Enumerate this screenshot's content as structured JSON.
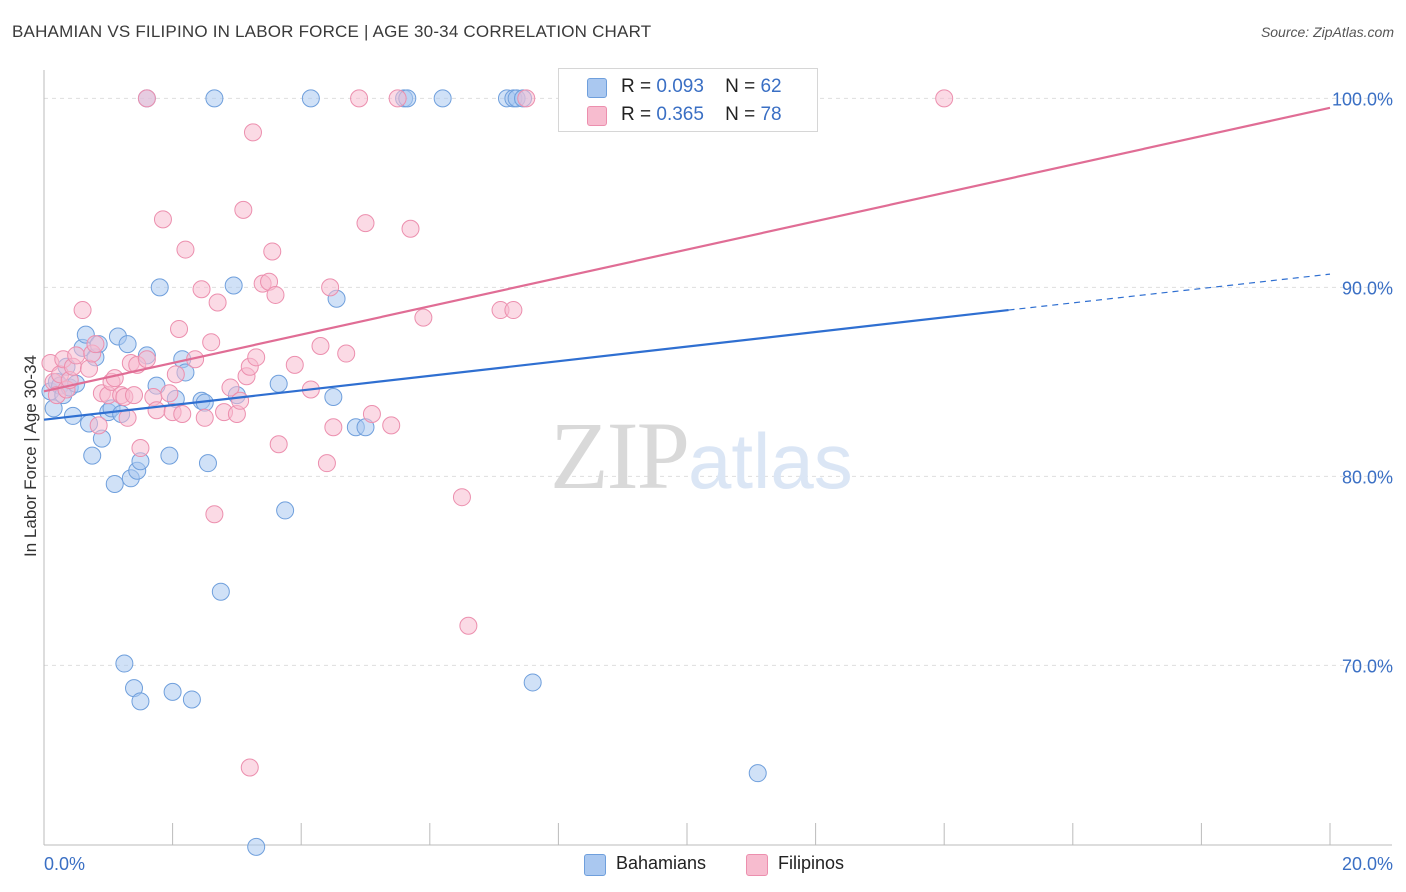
{
  "header": {
    "title": "BAHAMIAN VS FILIPINO IN LABOR FORCE | AGE 30-34 CORRELATION CHART",
    "source": "Source: ZipAtlas.com"
  },
  "legend": {
    "r_label": "R =",
    "n_label": "N =",
    "rows": [
      {
        "r": "0.093",
        "n": "62",
        "color": "#aac8f0"
      },
      {
        "r": "0.365",
        "n": "78",
        "color": "#f7bccf"
      }
    ]
  },
  "bottom_legend": [
    {
      "label": "Bahamians",
      "color": "#aac8f0"
    },
    {
      "label": "Filipinos",
      "color": "#f7bccf"
    }
  ],
  "watermark": {
    "part1": "ZIP",
    "part2": "atlas"
  },
  "chart_data": {
    "type": "scatter",
    "title": "BAHAMIAN VS FILIPINO IN LABOR FORCE | AGE 30-34 CORRELATION CHART",
    "xlabel": "",
    "ylabel": "In Labor Force | Age 30-34",
    "xlim": [
      0,
      20
    ],
    "ylim": [
      60.5,
      101.5
    ],
    "x_tick_labels": [
      "0.0%",
      "20.0%"
    ],
    "y_ticks": [
      70,
      80,
      90,
      100
    ],
    "y_tick_labels": [
      "70.0%",
      "80.0%",
      "90.0%",
      "100.0%"
    ],
    "grid": "horizontal dashed",
    "legend_position": "top-center",
    "series": [
      {
        "name": "Bahamians",
        "color": "#aac8f0",
        "stroke": "#6f9fdc",
        "line_color": "#2f6fd1",
        "trend": {
          "x0": 0.0,
          "y0": 83.0,
          "x1": 15.0,
          "y1": 88.8,
          "dash_to_x": 20.0,
          "dash_to_y": 90.7
        },
        "points": [
          [
            0.1,
            84.5
          ],
          [
            0.15,
            83.6
          ],
          [
            0.2,
            85.0
          ],
          [
            0.25,
            84.8
          ],
          [
            0.3,
            84.3
          ],
          [
            0.35,
            85.8
          ],
          [
            0.4,
            84.7
          ],
          [
            0.45,
            83.2
          ],
          [
            0.5,
            84.9
          ],
          [
            0.6,
            86.8
          ],
          [
            0.65,
            87.5
          ],
          [
            0.7,
            82.8
          ],
          [
            0.75,
            81.1
          ],
          [
            0.8,
            86.3
          ],
          [
            0.85,
            87.0
          ],
          [
            0.9,
            82.0
          ],
          [
            1.0,
            83.4
          ],
          [
            1.05,
            83.6
          ],
          [
            1.1,
            79.6
          ],
          [
            1.15,
            87.4
          ],
          [
            1.2,
            83.3
          ],
          [
            1.3,
            87.0
          ],
          [
            1.35,
            79.9
          ],
          [
            1.45,
            80.3
          ],
          [
            1.5,
            80.8
          ],
          [
            1.6,
            86.4
          ],
          [
            1.75,
            84.8
          ],
          [
            1.8,
            90.0
          ],
          [
            1.95,
            81.1
          ],
          [
            2.05,
            84.1
          ],
          [
            2.15,
            86.2
          ],
          [
            2.2,
            85.5
          ],
          [
            2.45,
            84.0
          ],
          [
            2.5,
            83.9
          ],
          [
            2.55,
            80.7
          ],
          [
            2.75,
            73.9
          ],
          [
            2.95,
            90.1
          ],
          [
            3.0,
            84.3
          ],
          [
            3.3,
            60.4
          ],
          [
            3.65,
            84.9
          ],
          [
            3.75,
            78.2
          ],
          [
            4.5,
            84.2
          ],
          [
            4.55,
            89.4
          ],
          [
            4.85,
            82.6
          ],
          [
            5.0,
            82.6
          ],
          [
            5.6,
            100.0
          ],
          [
            5.65,
            100.0
          ],
          [
            6.2,
            100.0
          ],
          [
            7.2,
            100.0
          ],
          [
            7.3,
            100.0
          ],
          [
            7.35,
            100.0
          ],
          [
            7.45,
            100.0
          ],
          [
            7.6,
            69.1
          ],
          [
            1.25,
            70.1
          ],
          [
            1.4,
            68.8
          ],
          [
            1.5,
            68.1
          ],
          [
            2.0,
            68.6
          ],
          [
            2.3,
            68.2
          ],
          [
            11.1,
            64.3
          ],
          [
            1.6,
            100.0
          ],
          [
            2.65,
            100.0
          ],
          [
            4.15,
            100.0
          ]
        ]
      },
      {
        "name": "Filipinos",
        "color": "#f7bccf",
        "stroke": "#ec8fae",
        "line_color": "#e06d95",
        "trend": {
          "x0": 0.0,
          "y0": 84.5,
          "x1": 20.0,
          "y1": 99.5
        },
        "points": [
          [
            0.1,
            86.0
          ],
          [
            0.15,
            85.0
          ],
          [
            0.2,
            84.3
          ],
          [
            0.25,
            85.4
          ],
          [
            0.3,
            86.2
          ],
          [
            0.35,
            84.6
          ],
          [
            0.4,
            85.1
          ],
          [
            0.45,
            85.8
          ],
          [
            0.5,
            86.4
          ],
          [
            0.6,
            88.8
          ],
          [
            0.7,
            85.7
          ],
          [
            0.75,
            86.5
          ],
          [
            0.8,
            87.0
          ],
          [
            0.85,
            82.7
          ],
          [
            0.9,
            84.4
          ],
          [
            1.0,
            84.3
          ],
          [
            1.05,
            85.0
          ],
          [
            1.1,
            85.2
          ],
          [
            1.2,
            84.3
          ],
          [
            1.25,
            84.2
          ],
          [
            1.3,
            83.1
          ],
          [
            1.35,
            86.0
          ],
          [
            1.4,
            84.3
          ],
          [
            1.45,
            85.9
          ],
          [
            1.5,
            81.5
          ],
          [
            1.6,
            86.2
          ],
          [
            1.7,
            84.2
          ],
          [
            1.75,
            83.5
          ],
          [
            1.85,
            93.6
          ],
          [
            1.95,
            84.4
          ],
          [
            2.0,
            83.4
          ],
          [
            2.05,
            85.4
          ],
          [
            2.1,
            87.8
          ],
          [
            2.15,
            83.3
          ],
          [
            2.2,
            92.0
          ],
          [
            2.35,
            86.2
          ],
          [
            2.45,
            89.9
          ],
          [
            2.5,
            83.1
          ],
          [
            2.6,
            87.1
          ],
          [
            2.65,
            78.0
          ],
          [
            2.7,
            89.2
          ],
          [
            2.8,
            83.4
          ],
          [
            2.9,
            84.7
          ],
          [
            3.0,
            83.3
          ],
          [
            3.05,
            84.0
          ],
          [
            3.1,
            94.1
          ],
          [
            3.15,
            85.3
          ],
          [
            3.2,
            64.6
          ],
          [
            3.2,
            85.8
          ],
          [
            3.3,
            86.3
          ],
          [
            3.4,
            90.2
          ],
          [
            3.5,
            90.3
          ],
          [
            3.6,
            89.6
          ],
          [
            3.65,
            81.7
          ],
          [
            3.55,
            91.9
          ],
          [
            3.9,
            85.9
          ],
          [
            4.15,
            84.6
          ],
          [
            4.3,
            86.9
          ],
          [
            4.4,
            80.7
          ],
          [
            4.45,
            90.0
          ],
          [
            4.5,
            82.6
          ],
          [
            4.7,
            86.5
          ],
          [
            4.9,
            100.0
          ],
          [
            5.0,
            93.4
          ],
          [
            5.1,
            83.3
          ],
          [
            5.4,
            82.7
          ],
          [
            5.5,
            100.0
          ],
          [
            5.7,
            93.1
          ],
          [
            5.9,
            88.4
          ],
          [
            6.5,
            78.9
          ],
          [
            6.6,
            72.1
          ],
          [
            7.1,
            88.8
          ],
          [
            7.3,
            88.8
          ],
          [
            7.5,
            100.0
          ],
          [
            8.75,
            100.0
          ],
          [
            14.0,
            100.0
          ],
          [
            3.25,
            98.2
          ],
          [
            1.6,
            100.0
          ]
        ]
      }
    ]
  }
}
